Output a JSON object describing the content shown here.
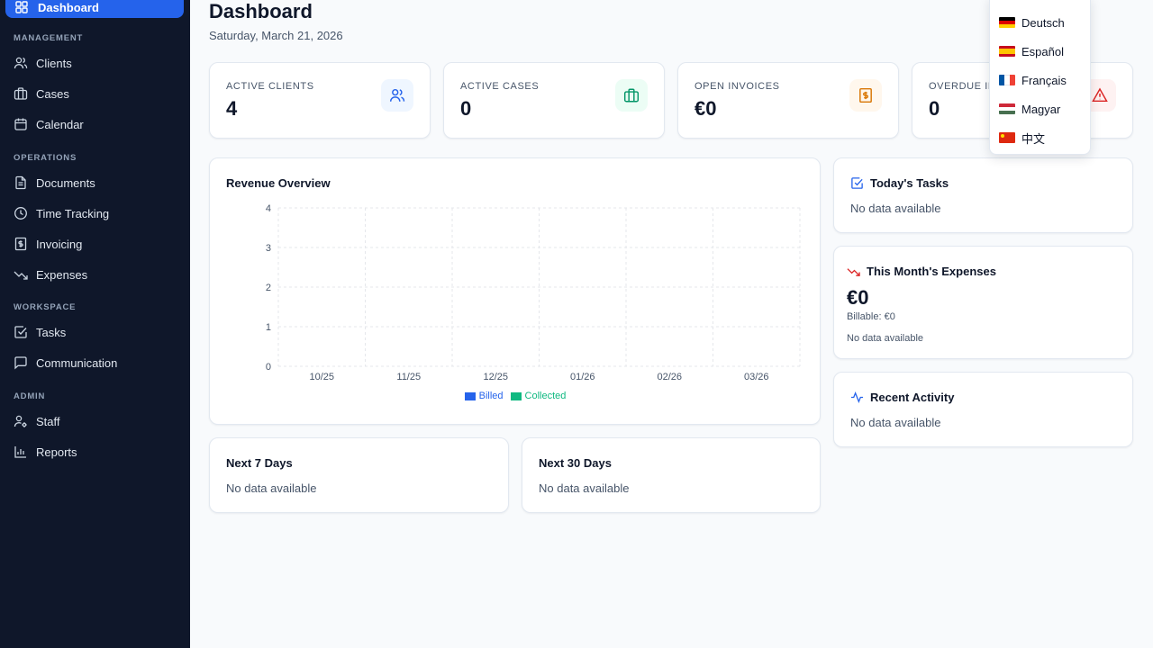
{
  "sidebar": {
    "active": {
      "label": "Dashboard",
      "icon": "dashboard-icon"
    },
    "sections": [
      {
        "label": "MANAGEMENT",
        "items": [
          {
            "label": "Clients",
            "icon": "users-icon"
          },
          {
            "label": "Cases",
            "icon": "briefcase-icon"
          },
          {
            "label": "Calendar",
            "icon": "calendar-icon"
          }
        ]
      },
      {
        "label": "OPERATIONS",
        "items": [
          {
            "label": "Documents",
            "icon": "document-icon"
          },
          {
            "label": "Time Tracking",
            "icon": "clock-icon"
          },
          {
            "label": "Invoicing",
            "icon": "invoice-icon"
          },
          {
            "label": "Expenses",
            "icon": "trending-down-icon"
          }
        ]
      },
      {
        "label": "WORKSPACE",
        "items": [
          {
            "label": "Tasks",
            "icon": "checkbox-icon"
          },
          {
            "label": "Communication",
            "icon": "message-icon"
          }
        ]
      },
      {
        "label": "ADMIN",
        "items": [
          {
            "label": "Staff",
            "icon": "user-gear-icon"
          },
          {
            "label": "Reports",
            "icon": "bar-chart-icon"
          }
        ]
      }
    ]
  },
  "header": {
    "title": "Dashboard",
    "date": "Saturday, March 21, 2026"
  },
  "stats": [
    {
      "label": "ACTIVE CLIENTS",
      "value": "4",
      "icon": "users-icon",
      "color": "#2563eb",
      "bg": "#eff6ff"
    },
    {
      "label": "ACTIVE CASES",
      "value": "0",
      "icon": "briefcase-icon",
      "color": "#059669",
      "bg": "#ecfdf5"
    },
    {
      "label": "OPEN INVOICES",
      "value": "€0",
      "icon": "invoice-icon",
      "color": "#d97706",
      "bg": "#fff7ed"
    },
    {
      "label": "OVERDUE IN",
      "value": "0",
      "icon": "alert-triangle-icon",
      "color": "#dc2626",
      "bg": "#fef2f2"
    }
  ],
  "revenue": {
    "title": "Revenue Overview",
    "chart_data": {
      "type": "bar",
      "categories": [
        "10/25",
        "11/25",
        "12/25",
        "01/26",
        "02/26",
        "03/26"
      ],
      "series": [
        {
          "name": "Billed",
          "values": [
            0,
            0,
            0,
            0,
            0,
            0
          ],
          "color": "#2563eb"
        },
        {
          "name": "Collected",
          "values": [
            0,
            0,
            0,
            0,
            0,
            0
          ],
          "color": "#10b981"
        }
      ],
      "yticks": [
        "4",
        "3",
        "2",
        "1",
        "0"
      ],
      "ylim": [
        0,
        4
      ],
      "grid": true,
      "legend": "bottom"
    }
  },
  "next7": {
    "title": "Next 7 Days",
    "empty": "No data available"
  },
  "next30": {
    "title": "Next 30 Days",
    "empty": "No data available"
  },
  "tasks": {
    "title": "Today's Tasks",
    "empty": "No data available",
    "icon": "checkbox-icon"
  },
  "expenses": {
    "title": "This Month's Expenses",
    "amount": "€0",
    "billable": "Billable: €0",
    "empty": "No data available",
    "icon": "trending-down-icon"
  },
  "activity": {
    "title": "Recent Activity",
    "empty": "No data available",
    "icon": "activity-icon"
  },
  "languages": [
    {
      "label": "Deutsch",
      "flag": [
        "#000000",
        "#dd0000",
        "#ffce00"
      ],
      "dir": "h"
    },
    {
      "label": "Español",
      "flag": [
        "#c60b1e",
        "#ffc400",
        "#c60b1e"
      ],
      "dir": "h"
    },
    {
      "label": "Français",
      "flag": [
        "#0055a4",
        "#ffffff",
        "#ef4135"
      ],
      "dir": "v"
    },
    {
      "label": "Magyar",
      "flag": [
        "#ce2939",
        "#ffffff",
        "#477050"
      ],
      "dir": "h"
    },
    {
      "label": "中文",
      "flag": [
        "#de2910",
        "#de2910",
        "#de2910"
      ],
      "dir": "h"
    }
  ]
}
